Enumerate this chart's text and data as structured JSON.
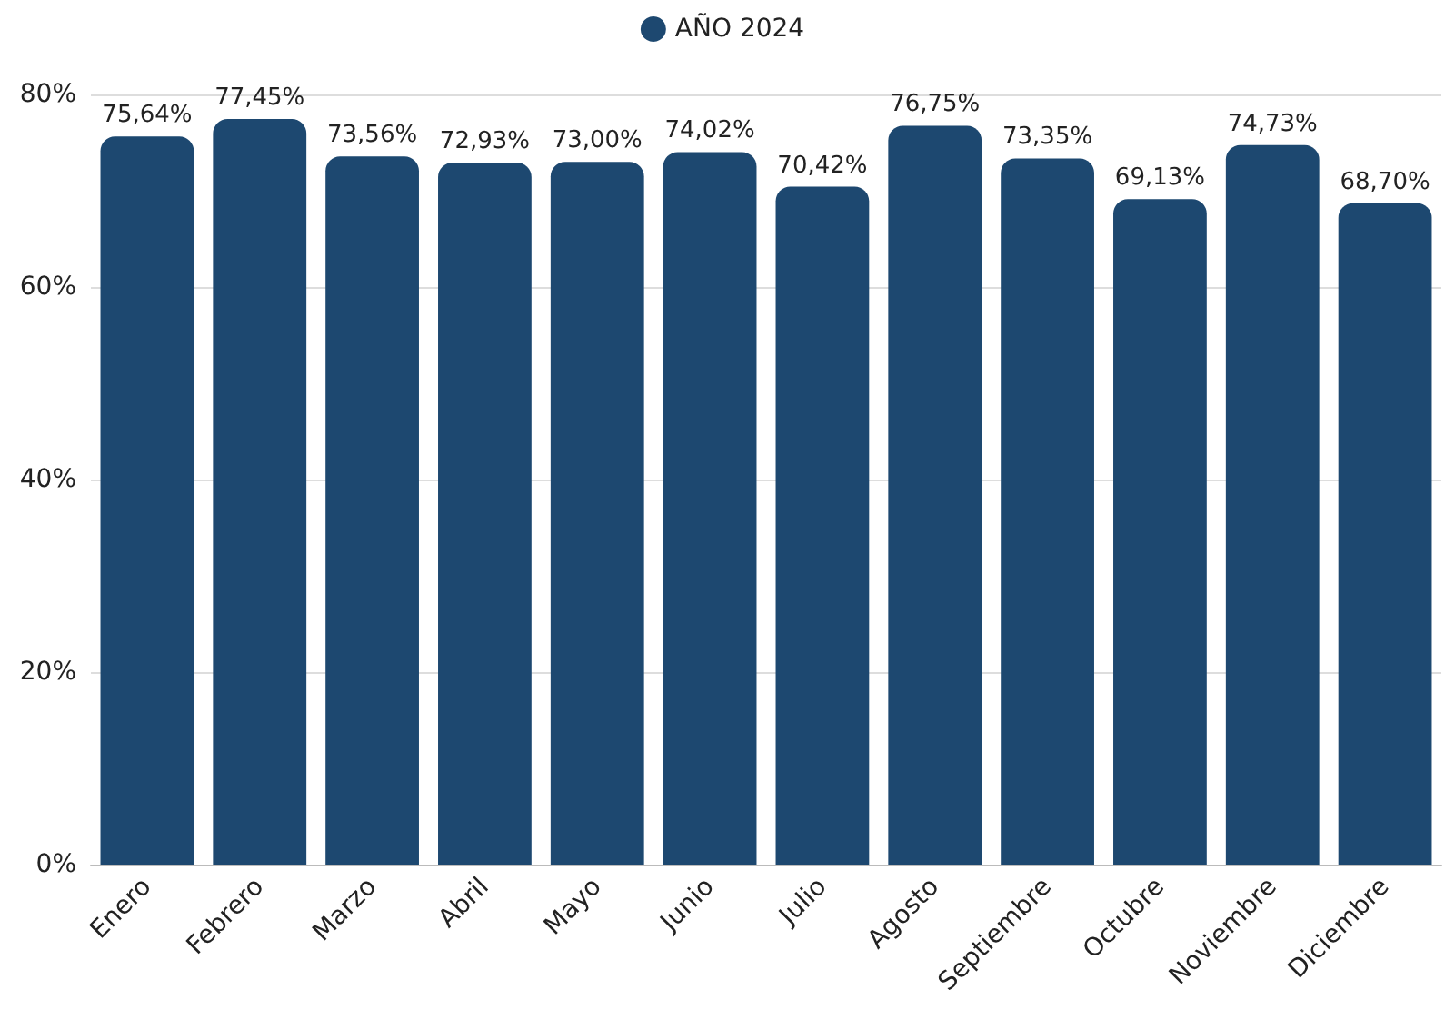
{
  "chart_data": {
    "type": "bar",
    "categories": [
      "Enero",
      "Febrero",
      "Marzo",
      "Abril",
      "Mayo",
      "Junio",
      "Julio",
      "Agosto",
      "Septiembre",
      "Octubre",
      "Noviembre",
      "Diciembre"
    ],
    "series": [
      {
        "name": "AÑO 2024",
        "color": "#1d4870",
        "values": [
          75.64,
          77.45,
          73.56,
          72.93,
          73.0,
          74.02,
          70.42,
          76.75,
          73.35,
          69.13,
          74.73,
          68.7
        ],
        "value_labels": [
          "75,64%",
          "77,45%",
          "73,56%",
          "72,93%",
          "73,00%",
          "74,02%",
          "70,42%",
          "76,75%",
          "73,35%",
          "69,13%",
          "74,73%",
          "68,70%"
        ]
      }
    ],
    "ylim": [
      0,
      80
    ],
    "yticks": [
      {
        "value": 0,
        "label": "0%"
      },
      {
        "value": 20,
        "label": "20%"
      },
      {
        "value": 40,
        "label": "40%"
      },
      {
        "value": 60,
        "label": "60%"
      },
      {
        "value": 80,
        "label": "80%"
      }
    ],
    "grid": "y",
    "legend": "top"
  }
}
